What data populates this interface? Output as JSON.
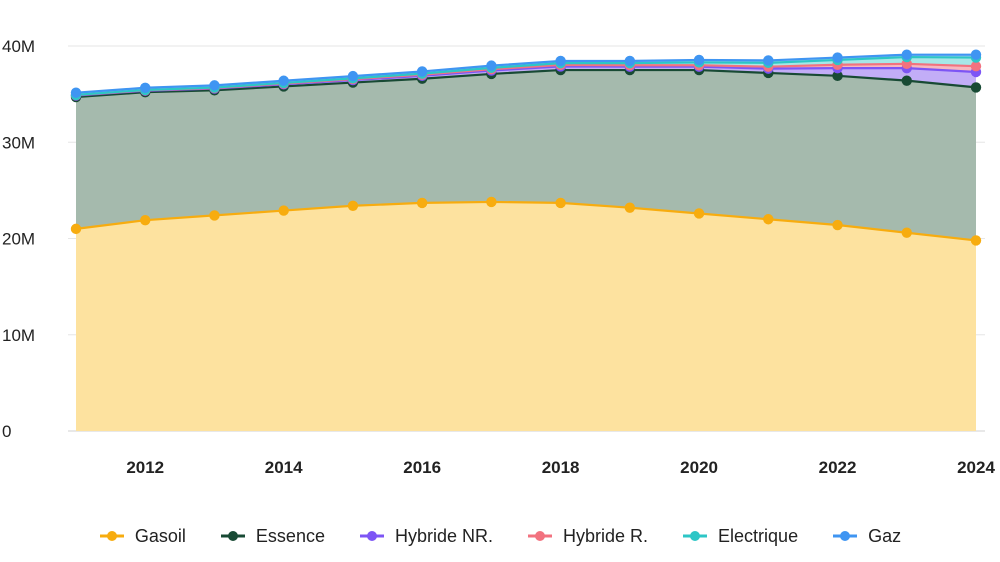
{
  "chart_data": {
    "type": "area",
    "stacked": true,
    "x": [
      2011,
      2012,
      2013,
      2014,
      2015,
      2016,
      2017,
      2018,
      2019,
      2020,
      2021,
      2022,
      2023,
      2024
    ],
    "x_ticks": [
      "2012",
      "2014",
      "2016",
      "2018",
      "2020",
      "2022",
      "2024"
    ],
    "y_ticks": [
      "0",
      "10M",
      "20M",
      "30M",
      "40M"
    ],
    "ylim": [
      0,
      40000000
    ],
    "grid": true,
    "legend_position": "bottom",
    "series": [
      {
        "name": "Gasoil",
        "color": "#f7ac0f",
        "fill": "#fde29f",
        "values": [
          21000000,
          21900000,
          22400000,
          22900000,
          23400000,
          23700000,
          23800000,
          23700000,
          23200000,
          22600000,
          22000000,
          21400000,
          20600000,
          19800000
        ]
      },
      {
        "name": "Essence",
        "color": "#184a34",
        "fill": "#a5baad",
        "values": [
          13700000,
          13300000,
          13000000,
          12900000,
          12800000,
          12900000,
          13300000,
          13800000,
          14300000,
          14900000,
          15200000,
          15500000,
          15800000,
          15900000
        ]
      },
      {
        "name": "Hybride NR.",
        "color": "#7d55f5",
        "fill": "#c2adf7",
        "values": [
          150000,
          150000,
          180000,
          220000,
          260000,
          300000,
          350000,
          380000,
          350000,
          350000,
          450000,
          800000,
          1300000,
          1600000
        ]
      },
      {
        "name": "Hybride R.",
        "color": "#f2727f",
        "fill": "#f7b8bf",
        "values": [
          50000,
          50000,
          60000,
          80000,
          100000,
          120000,
          140000,
          160000,
          150000,
          150000,
          200000,
          350000,
          450000,
          600000
        ]
      },
      {
        "name": "Electrique",
        "color": "#2dc6c6",
        "fill": "#a6e7e7",
        "values": [
          20000,
          30000,
          40000,
          60000,
          80000,
          110000,
          140000,
          180000,
          220000,
          300000,
          400000,
          500000,
          700000,
          900000
        ]
      },
      {
        "name": "Gaz",
        "color": "#3f95f2",
        "fill": "#a7ccf5",
        "values": [
          230000,
          230000,
          230000,
          230000,
          230000,
          230000,
          230000,
          230000,
          230000,
          250000,
          250000,
          250000,
          250000,
          300000
        ]
      }
    ]
  }
}
